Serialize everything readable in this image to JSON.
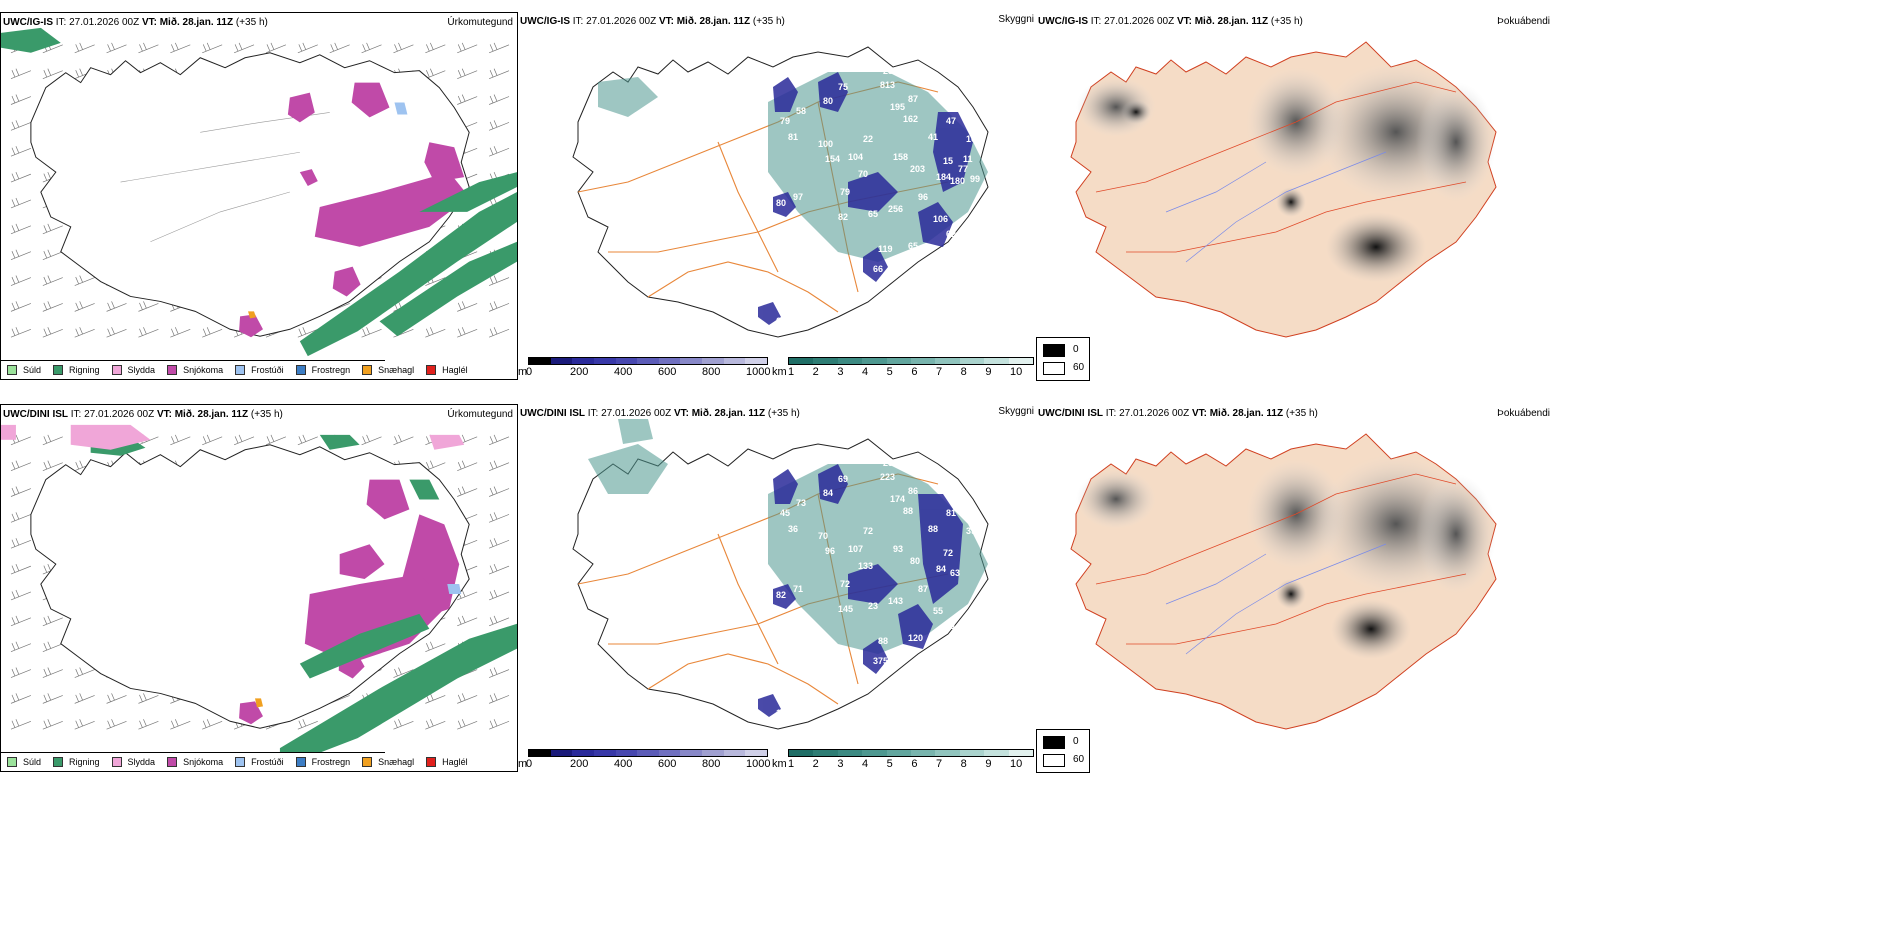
{
  "rows": [
    {
      "model": "UWC/IG-IS",
      "it_label": " IT: 27.01.2026 00Z ",
      "vt_label": "VT: Mið. 28.jan. 11Z",
      "lead": " (+35 h)"
    },
    {
      "model": "UWC/DINI ISL",
      "it_label": " IT: 27.01.2026 00Z ",
      "vt_label": "VT: Mið. 28.jan. 11Z",
      "lead": " (+35 h)"
    }
  ],
  "panel_names": {
    "precip": "Úrkomutegund",
    "visibility": "Skyggni",
    "fog": "Þokuábendi"
  },
  "precip_legend": [
    {
      "label": "Súld",
      "color": "#9be29b"
    },
    {
      "label": "Rigning",
      "color": "#3a9a6a"
    },
    {
      "label": "Slydda",
      "color": "#f0a6d8"
    },
    {
      "label": "Snjókoma",
      "color": "#c04aa8"
    },
    {
      "label": "Frostúði",
      "color": "#9ec3f0"
    },
    {
      "label": "Frostregn",
      "color": "#3c7dc4"
    },
    {
      "label": "Snæhagl",
      "color": "#f0a020"
    },
    {
      "label": "Haglél",
      "color": "#e0201c"
    }
  ],
  "cloudbase_bar": {
    "unit": "m",
    "ticks": [
      "0",
      "200",
      "400",
      "600",
      "800",
      "1000"
    ],
    "colors": [
      "#000000",
      "#1a1a7a",
      "#2a2a9a",
      "#3838a8",
      "#4848b0",
      "#5c5cb8",
      "#7070c0",
      "#8888c8",
      "#a0a0d0",
      "#b8b8dc",
      "#d0d0e8"
    ]
  },
  "visibility_bar": {
    "unit": "km",
    "ticks": [
      "1",
      "2",
      "3",
      "4",
      "5",
      "6",
      "7",
      "8",
      "9",
      "10"
    ],
    "colors": [
      "#1f6e66",
      "#2e7d74",
      "#3c8a82",
      "#4e9890",
      "#62a69e",
      "#78b4ad",
      "#90c4bd",
      "#aad3cd",
      "#c4e2dd",
      "#e2f1ee"
    ]
  },
  "fog_legend": {
    "high": "0",
    "low": "60",
    "high_color": "#000000",
    "low_color": "#ffffff"
  },
  "visibility_values": [
    [
      "280",
      "813",
      "195",
      "87",
      "162",
      "47",
      "104",
      "22",
      "104",
      "158",
      "203",
      "15",
      "184",
      "41",
      "100",
      "154",
      "79",
      "70",
      "82",
      "65",
      "256",
      "96",
      "106",
      "62",
      "119",
      "65",
      "66",
      "80",
      "97",
      "65",
      "58",
      "79",
      "81",
      "75",
      "80",
      "180",
      "11",
      "99",
      "77"
    ],
    [
      "25",
      "223",
      "174",
      "86",
      "88",
      "81",
      "39",
      "72",
      "107",
      "93",
      "80",
      "72",
      "84",
      "88",
      "70",
      "96",
      "72",
      "133",
      "145",
      "23",
      "143",
      "87",
      "55",
      "81",
      "88",
      "120",
      "375",
      "82",
      "71",
      "107",
      "73",
      "45",
      "36",
      "69",
      "84",
      "63"
    ]
  ]
}
